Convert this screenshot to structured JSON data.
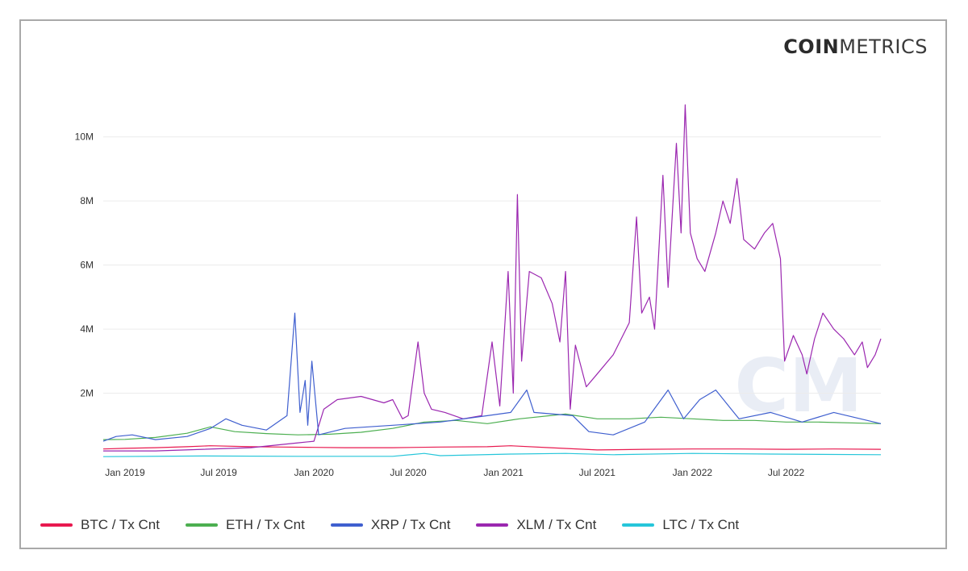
{
  "brand": {
    "bold": "COIN",
    "light": "METRICS"
  },
  "watermark": "CM",
  "chart_data": {
    "type": "line",
    "title": "",
    "xlabel": "",
    "ylabel": "",
    "ylim": [
      0,
      11000000
    ],
    "xlim": [
      "2018-11-20",
      "2022-12-31"
    ],
    "grid": true,
    "legend_position": "bottom",
    "y_ticks": [
      {
        "value": 2000000,
        "label": "2M"
      },
      {
        "value": 4000000,
        "label": "4M"
      },
      {
        "value": 6000000,
        "label": "6M"
      },
      {
        "value": 8000000,
        "label": "8M"
      },
      {
        "value": 10000000,
        "label": "10M"
      }
    ],
    "x_ticks": [
      {
        "value": "2019-01-01",
        "label": "Jan 2019"
      },
      {
        "value": "2019-07-01",
        "label": "Jul 2019"
      },
      {
        "value": "2020-01-01",
        "label": "Jan 2020"
      },
      {
        "value": "2020-07-01",
        "label": "Jul 2020"
      },
      {
        "value": "2021-01-01",
        "label": "Jan 2021"
      },
      {
        "value": "2021-07-01",
        "label": "Jul 2021"
      },
      {
        "value": "2022-01-01",
        "label": "Jan 2022"
      },
      {
        "value": "2022-07-01",
        "label": "Jul 2022"
      }
    ],
    "series": [
      {
        "name": "BTC / Tx Cnt",
        "color": "#e8194f",
        "points": [
          [
            "2018-11-20",
            260000
          ],
          [
            "2019-01-01",
            280000
          ],
          [
            "2019-03-01",
            300000
          ],
          [
            "2019-05-01",
            330000
          ],
          [
            "2019-06-15",
            360000
          ],
          [
            "2019-09-01",
            330000
          ],
          [
            "2019-11-01",
            320000
          ],
          [
            "2020-01-01",
            310000
          ],
          [
            "2020-03-01",
            300000
          ],
          [
            "2020-06-01",
            300000
          ],
          [
            "2020-09-01",
            320000
          ],
          [
            "2020-12-01",
            330000
          ],
          [
            "2021-01-15",
            360000
          ],
          [
            "2021-04-01",
            300000
          ],
          [
            "2021-07-01",
            230000
          ],
          [
            "2021-10-01",
            250000
          ],
          [
            "2022-01-01",
            260000
          ],
          [
            "2022-04-01",
            260000
          ],
          [
            "2022-07-01",
            250000
          ],
          [
            "2022-10-01",
            260000
          ],
          [
            "2022-12-31",
            250000
          ]
        ]
      },
      {
        "name": "ETH / Tx Cnt",
        "color": "#4caf50",
        "points": [
          [
            "2018-11-20",
            550000
          ],
          [
            "2019-01-01",
            560000
          ],
          [
            "2019-03-01",
            620000
          ],
          [
            "2019-05-01",
            750000
          ],
          [
            "2019-06-15",
            950000
          ],
          [
            "2019-08-01",
            800000
          ],
          [
            "2019-10-01",
            740000
          ],
          [
            "2019-12-01",
            700000
          ],
          [
            "2020-02-01",
            720000
          ],
          [
            "2020-04-01",
            780000
          ],
          [
            "2020-06-01",
            900000
          ],
          [
            "2020-08-01",
            1100000
          ],
          [
            "2020-10-01",
            1150000
          ],
          [
            "2020-12-01",
            1050000
          ],
          [
            "2021-02-01",
            1200000
          ],
          [
            "2021-05-01",
            1350000
          ],
          [
            "2021-07-01",
            1200000
          ],
          [
            "2021-09-01",
            1200000
          ],
          [
            "2021-11-01",
            1250000
          ],
          [
            "2022-01-01",
            1200000
          ],
          [
            "2022-03-01",
            1150000
          ],
          [
            "2022-05-01",
            1150000
          ],
          [
            "2022-07-01",
            1100000
          ],
          [
            "2022-09-01",
            1100000
          ],
          [
            "2022-12-31",
            1050000
          ]
        ]
      },
      {
        "name": "XRP / Tx Cnt",
        "color": "#3f5fcf",
        "points": [
          [
            "2018-11-20",
            500000
          ],
          [
            "2018-12-15",
            650000
          ],
          [
            "2019-01-15",
            700000
          ],
          [
            "2019-03-01",
            550000
          ],
          [
            "2019-05-01",
            650000
          ],
          [
            "2019-06-15",
            900000
          ],
          [
            "2019-07-15",
            1200000
          ],
          [
            "2019-08-15",
            1000000
          ],
          [
            "2019-10-01",
            850000
          ],
          [
            "2019-11-10",
            1300000
          ],
          [
            "2019-11-25",
            4500000
          ],
          [
            "2019-12-05",
            1400000
          ],
          [
            "2019-12-15",
            2400000
          ],
          [
            "2019-12-20",
            1000000
          ],
          [
            "2019-12-28",
            3000000
          ],
          [
            "2020-01-10",
            700000
          ],
          [
            "2020-03-01",
            900000
          ],
          [
            "2020-06-01",
            1000000
          ],
          [
            "2020-09-01",
            1100000
          ],
          [
            "2020-12-01",
            1300000
          ],
          [
            "2021-01-15",
            1400000
          ],
          [
            "2021-02-15",
            2100000
          ],
          [
            "2021-03-01",
            1400000
          ],
          [
            "2021-05-15",
            1300000
          ],
          [
            "2021-06-15",
            800000
          ],
          [
            "2021-08-01",
            700000
          ],
          [
            "2021-10-01",
            1100000
          ],
          [
            "2021-11-15",
            2100000
          ],
          [
            "2021-12-15",
            1200000
          ],
          [
            "2022-01-15",
            1800000
          ],
          [
            "2022-02-15",
            2100000
          ],
          [
            "2022-04-01",
            1200000
          ],
          [
            "2022-06-01",
            1400000
          ],
          [
            "2022-08-01",
            1100000
          ],
          [
            "2022-10-01",
            1400000
          ],
          [
            "2022-12-31",
            1050000
          ]
        ]
      },
      {
        "name": "XLM / Tx Cnt",
        "color": "#9b27b0",
        "points": [
          [
            "2018-11-20",
            200000
          ],
          [
            "2019-03-01",
            200000
          ],
          [
            "2019-06-01",
            250000
          ],
          [
            "2019-09-01",
            300000
          ],
          [
            "2019-12-01",
            450000
          ],
          [
            "2020-01-01",
            500000
          ],
          [
            "2020-01-20",
            1500000
          ],
          [
            "2020-02-15",
            1800000
          ],
          [
            "2020-04-01",
            1900000
          ],
          [
            "2020-05-15",
            1700000
          ],
          [
            "2020-06-01",
            1800000
          ],
          [
            "2020-06-20",
            1200000
          ],
          [
            "2020-07-01",
            1300000
          ],
          [
            "2020-07-20",
            3600000
          ],
          [
            "2020-08-01",
            2000000
          ],
          [
            "2020-08-15",
            1500000
          ],
          [
            "2020-09-10",
            1400000
          ],
          [
            "2020-10-15",
            1200000
          ],
          [
            "2020-11-20",
            1300000
          ],
          [
            "2020-12-10",
            3600000
          ],
          [
            "2020-12-25",
            1600000
          ],
          [
            "2021-01-10",
            5800000
          ],
          [
            "2021-01-20",
            2000000
          ],
          [
            "2021-01-28",
            8200000
          ],
          [
            "2021-02-05",
            3000000
          ],
          [
            "2021-02-20",
            5800000
          ],
          [
            "2021-03-15",
            5600000
          ],
          [
            "2021-04-05",
            4800000
          ],
          [
            "2021-04-20",
            3600000
          ],
          [
            "2021-05-01",
            5800000
          ],
          [
            "2021-05-10",
            1500000
          ],
          [
            "2021-05-20",
            3500000
          ],
          [
            "2021-06-10",
            2200000
          ],
          [
            "2021-07-01",
            2600000
          ],
          [
            "2021-08-01",
            3200000
          ],
          [
            "2021-09-01",
            4200000
          ],
          [
            "2021-09-15",
            7500000
          ],
          [
            "2021-09-25",
            4500000
          ],
          [
            "2021-10-10",
            5000000
          ],
          [
            "2021-10-20",
            4000000
          ],
          [
            "2021-11-05",
            8800000
          ],
          [
            "2021-11-15",
            5300000
          ],
          [
            "2021-12-01",
            9800000
          ],
          [
            "2021-12-10",
            7000000
          ],
          [
            "2021-12-18",
            11000000
          ],
          [
            "2021-12-28",
            7000000
          ],
          [
            "2022-01-10",
            6200000
          ],
          [
            "2022-01-25",
            5800000
          ],
          [
            "2022-02-15",
            7000000
          ],
          [
            "2022-03-01",
            8000000
          ],
          [
            "2022-03-15",
            7300000
          ],
          [
            "2022-03-28",
            8700000
          ],
          [
            "2022-04-10",
            6800000
          ],
          [
            "2022-05-01",
            6500000
          ],
          [
            "2022-05-20",
            7000000
          ],
          [
            "2022-06-05",
            7300000
          ],
          [
            "2022-06-20",
            6200000
          ],
          [
            "2022-06-28",
            3000000
          ],
          [
            "2022-07-15",
            3800000
          ],
          [
            "2022-08-01",
            3200000
          ],
          [
            "2022-08-10",
            2600000
          ],
          [
            "2022-08-25",
            3700000
          ],
          [
            "2022-09-10",
            4500000
          ],
          [
            "2022-10-01",
            4000000
          ],
          [
            "2022-10-20",
            3700000
          ],
          [
            "2022-11-10",
            3200000
          ],
          [
            "2022-11-25",
            3600000
          ],
          [
            "2022-12-05",
            2800000
          ],
          [
            "2022-12-20",
            3200000
          ],
          [
            "2022-12-31",
            3700000
          ]
        ]
      },
      {
        "name": "LTC / Tx Cnt",
        "color": "#26c6da",
        "points": [
          [
            "2018-11-20",
            20000
          ],
          [
            "2019-06-01",
            40000
          ],
          [
            "2019-12-01",
            30000
          ],
          [
            "2020-06-01",
            30000
          ],
          [
            "2020-08-01",
            120000
          ],
          [
            "2020-09-01",
            50000
          ],
          [
            "2021-01-15",
            100000
          ],
          [
            "2021-05-01",
            120000
          ],
          [
            "2021-08-01",
            80000
          ],
          [
            "2022-01-01",
            120000
          ],
          [
            "2022-06-01",
            100000
          ],
          [
            "2022-12-31",
            80000
          ]
        ]
      }
    ]
  }
}
